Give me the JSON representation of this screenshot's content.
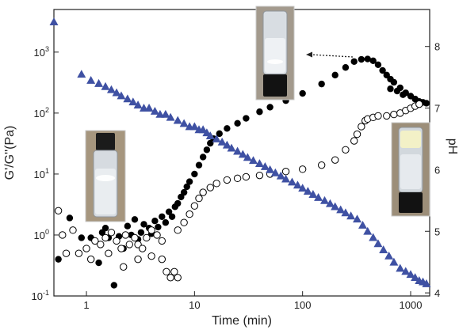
{
  "chart_data": {
    "type": "scatter",
    "title": "",
    "xlabel": "Time (min)",
    "ylabel_left": "G'/G''(Pa)",
    "ylabel_right": "pH",
    "x_scale": "log",
    "y_left_scale": "log",
    "xlim": [
      0.5,
      1500
    ],
    "ylim_left": [
      0.1,
      5000
    ],
    "ylim_right": [
      3.95,
      8.6
    ],
    "x_ticks": [
      {
        "value": 1,
        "label": "1"
      },
      {
        "value": 10,
        "label": "10"
      },
      {
        "value": 100,
        "label": "100"
      },
      {
        "value": 1000,
        "label": "1000"
      }
    ],
    "y_left_ticks": [
      {
        "value": 0.1,
        "base": "10",
        "exp": "-1"
      },
      {
        "value": 1,
        "base": "10",
        "exp": "0"
      },
      {
        "value": 10,
        "base": "10",
        "exp": "1"
      },
      {
        "value": 100,
        "base": "10",
        "exp": "2"
      },
      {
        "value": 1000,
        "base": "10",
        "exp": "3"
      }
    ],
    "y_right_ticks": [
      {
        "value": 4,
        "label": "4"
      },
      {
        "value": 5,
        "label": "5"
      },
      {
        "value": 6,
        "label": "6"
      },
      {
        "value": 7,
        "label": "7"
      },
      {
        "value": 8,
        "label": "8"
      }
    ],
    "grid": false,
    "legend": "none",
    "series": [
      {
        "marker": "filled-circle",
        "axis": "left",
        "color": "#000000",
        "points": [
          [
            0.55,
            0.4
          ],
          [
            0.7,
            1.9
          ],
          [
            0.9,
            0.9
          ],
          [
            1.1,
            0.9
          ],
          [
            1.3,
            0.35
          ],
          [
            1.4,
            1.1
          ],
          [
            1.5,
            1.3
          ],
          [
            1.6,
            0.9
          ],
          [
            1.8,
            0.15
          ],
          [
            2,
            0.95
          ],
          [
            2.2,
            0.6
          ],
          [
            2.4,
            1.4
          ],
          [
            2.6,
            1.0
          ],
          [
            2.8,
            1.8
          ],
          [
            3,
            0.85
          ],
          [
            3.2,
            1.1
          ],
          [
            3.4,
            1.5
          ],
          [
            3.6,
            0.9
          ],
          [
            3.8,
            1.3
          ],
          [
            4,
            1.05
          ],
          [
            4.3,
            1.7
          ],
          [
            4.6,
            1.35
          ],
          [
            5,
            2.0
          ],
          [
            5.4,
            1.6
          ],
          [
            5.8,
            2.4
          ],
          [
            6.2,
            2.0
          ],
          [
            6.6,
            2.9
          ],
          [
            7,
            3.3
          ],
          [
            7.5,
            4.2
          ],
          [
            8,
            5.0
          ],
          [
            8.5,
            6.2
          ],
          [
            9,
            7.5
          ],
          [
            10,
            10
          ],
          [
            11,
            14
          ],
          [
            12,
            19
          ],
          [
            13,
            25
          ],
          [
            14,
            32
          ],
          [
            15,
            38
          ],
          [
            17,
            46
          ],
          [
            20,
            56
          ],
          [
            25,
            68
          ],
          [
            30,
            82
          ],
          [
            40,
            105
          ],
          [
            50,
            125
          ],
          [
            70,
            160
          ],
          [
            100,
            210
          ],
          [
            150,
            300
          ],
          [
            200,
            420
          ],
          [
            250,
            560
          ],
          [
            300,
            700
          ],
          [
            350,
            760
          ],
          [
            400,
            770
          ],
          [
            450,
            720
          ],
          [
            500,
            620
          ],
          [
            550,
            500
          ],
          [
            600,
            420
          ],
          [
            650,
            360
          ],
          [
            700,
            320
          ],
          [
            800,
            260
          ],
          [
            900,
            215
          ],
          [
            1000,
            190
          ],
          [
            1100,
            170
          ],
          [
            1200,
            155
          ],
          [
            1300,
            150
          ],
          [
            1400,
            145
          ],
          [
            650,
            250
          ],
          [
            750,
            230
          ],
          [
            850,
            200
          ]
        ]
      },
      {
        "marker": "open-circle",
        "axis": "left",
        "color": "#000000",
        "points": [
          [
            0.55,
            2.5
          ],
          [
            0.6,
            1.0
          ],
          [
            0.65,
            0.5
          ],
          [
            0.75,
            1.2
          ],
          [
            0.85,
            0.5
          ],
          [
            1,
            0.6
          ],
          [
            1.1,
            0.4
          ],
          [
            1.2,
            0.8
          ],
          [
            1.35,
            0.7
          ],
          [
            1.5,
            0.9
          ],
          [
            1.6,
            0.5
          ],
          [
            1.7,
            1.1
          ],
          [
            1.9,
            0.8
          ],
          [
            2.1,
            0.6
          ],
          [
            2.3,
            1.0
          ],
          [
            2.5,
            0.7
          ],
          [
            2.8,
            0.9
          ],
          [
            3,
            0.7
          ],
          [
            3.3,
            0.6
          ],
          [
            3.6,
            0.9
          ],
          [
            4,
            1.2
          ],
          [
            4.5,
            1.0
          ],
          [
            5,
            0.8
          ],
          [
            5.5,
            0.25
          ],
          [
            6,
            0.2
          ],
          [
            6.5,
            0.25
          ],
          [
            7,
            0.2
          ],
          [
            2.2,
            0.3
          ],
          [
            3,
            0.4
          ],
          [
            4,
            0.45
          ],
          [
            5,
            0.4
          ],
          [
            7,
            1.2
          ],
          [
            8,
            1.6
          ],
          [
            9,
            2.2
          ],
          [
            10,
            3.0
          ],
          [
            11,
            4.0
          ],
          [
            12,
            5.0
          ],
          [
            14,
            6.0
          ],
          [
            16,
            7.0
          ],
          [
            20,
            8.0
          ],
          [
            25,
            8.5
          ],
          [
            30,
            9.0
          ],
          [
            40,
            9.5
          ],
          [
            50,
            10
          ],
          [
            70,
            11
          ],
          [
            100,
            12
          ],
          [
            150,
            14
          ],
          [
            200,
            17
          ],
          [
            250,
            25
          ],
          [
            300,
            35
          ],
          [
            320,
            45
          ],
          [
            350,
            60
          ],
          [
            380,
            75
          ],
          [
            400,
            80
          ],
          [
            450,
            85
          ],
          [
            500,
            90
          ],
          [
            600,
            90
          ],
          [
            700,
            95
          ],
          [
            800,
            100
          ],
          [
            900,
            110
          ],
          [
            1000,
            120
          ],
          [
            1100,
            130
          ],
          [
            1200,
            140
          ]
        ]
      },
      {
        "marker": "filled-triangle",
        "axis": "right",
        "color": "#3f51a3",
        "points": [
          [
            0.5,
            8.4
          ],
          [
            0.9,
            7.55
          ],
          [
            1.1,
            7.45
          ],
          [
            1.3,
            7.4
          ],
          [
            1.5,
            7.35
          ],
          [
            1.7,
            7.3
          ],
          [
            1.9,
            7.25
          ],
          [
            2.1,
            7.2
          ],
          [
            2.4,
            7.15
          ],
          [
            2.7,
            7.1
          ],
          [
            3,
            7.05
          ],
          [
            3.4,
            7.0
          ],
          [
            3.8,
            7.0
          ],
          [
            4.3,
            6.95
          ],
          [
            4.8,
            6.9
          ],
          [
            5.4,
            6.9
          ],
          [
            6,
            6.85
          ],
          [
            7,
            6.8
          ],
          [
            8,
            6.75
          ],
          [
            9,
            6.7
          ],
          [
            10,
            6.7
          ],
          [
            11,
            6.65
          ],
          [
            12,
            6.65
          ],
          [
            13,
            6.6
          ],
          [
            14,
            6.55
          ],
          [
            16,
            6.5
          ],
          [
            18,
            6.45
          ],
          [
            20,
            6.4
          ],
          [
            22,
            6.35
          ],
          [
            25,
            6.3
          ],
          [
            28,
            6.25
          ],
          [
            31,
            6.2
          ],
          [
            35,
            6.15
          ],
          [
            40,
            6.1
          ],
          [
            45,
            6.05
          ],
          [
            50,
            6.0
          ],
          [
            56,
            5.95
          ],
          [
            63,
            5.9
          ],
          [
            70,
            5.85
          ],
          [
            80,
            5.8
          ],
          [
            90,
            5.75
          ],
          [
            100,
            5.7
          ],
          [
            112,
            5.65
          ],
          [
            125,
            5.6
          ],
          [
            140,
            5.55
          ],
          [
            160,
            5.5
          ],
          [
            180,
            5.45
          ],
          [
            200,
            5.4
          ],
          [
            225,
            5.35
          ],
          [
            250,
            5.3
          ],
          [
            280,
            5.25
          ],
          [
            320,
            5.2
          ],
          [
            360,
            5.1
          ],
          [
            400,
            5.0
          ],
          [
            450,
            4.9
          ],
          [
            500,
            4.8
          ],
          [
            560,
            4.7
          ],
          [
            630,
            4.6
          ],
          [
            700,
            4.5
          ],
          [
            800,
            4.4
          ],
          [
            900,
            4.35
          ],
          [
            1000,
            4.3
          ],
          [
            1100,
            4.25
          ],
          [
            1200,
            4.2
          ],
          [
            1300,
            4.18
          ],
          [
            1400,
            4.15
          ]
        ]
      }
    ]
  }
}
